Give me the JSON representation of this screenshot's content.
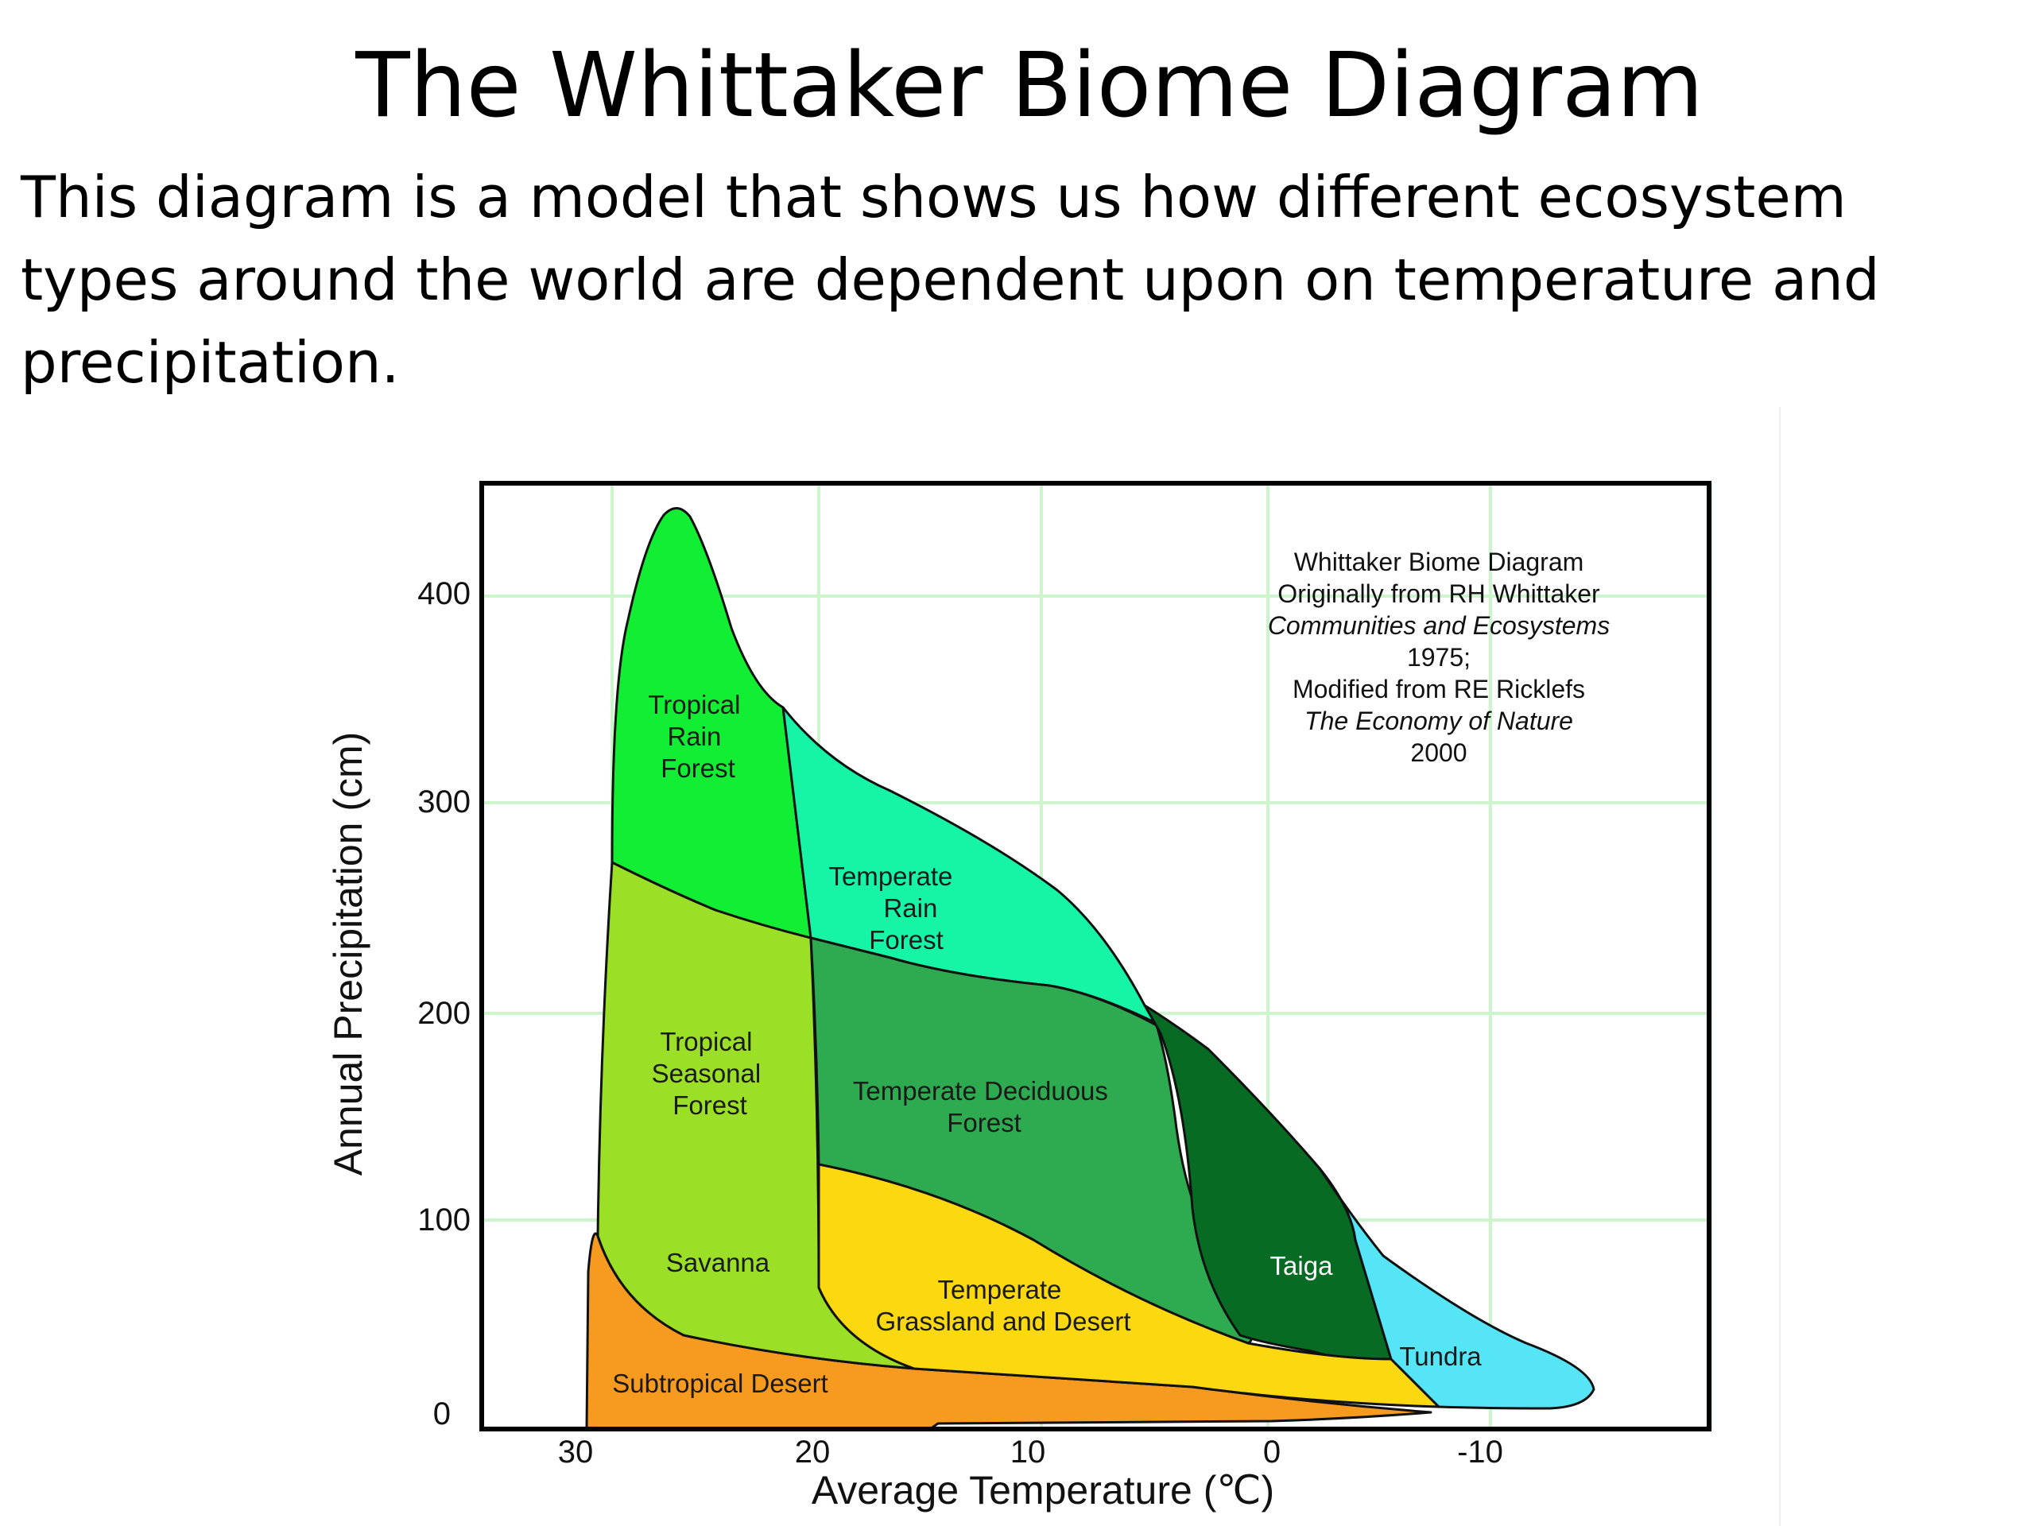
{
  "title": "The Whittaker Biome Diagram",
  "description": "This diagram is a model that shows us how different ecosystem types around the world are dependent upon on temperature and precipitation.",
  "colors": {
    "tropical_rain_forest": "#11ee33",
    "tropical_seasonal_forest": "#9be027",
    "subtropical_desert": "#f79b20",
    "temperate_rain_forest": "#16f5a6",
    "temperate_deciduous_forest": "#2eaa50",
    "temperate_grassland_desert": "#fbd80f",
    "taiga": "#086b24",
    "tundra": "#56e5f6",
    "grid": "#ccf5cc"
  },
  "axes": {
    "x_title": "Average Temperature (℃)",
    "y_title": "Annual Precipitation (cm)",
    "x_ticks": [
      "30",
      "20",
      "10",
      "0",
      "-10"
    ],
    "y_ticks": [
      "400",
      "300",
      "200",
      "100",
      "0"
    ]
  },
  "biomes": [
    {
      "label_lines": [
        "Tropical",
        "Rain",
        "Forest"
      ]
    },
    {
      "label_lines": [
        "Temperate",
        "Rain",
        "Forest"
      ]
    },
    {
      "label_lines": [
        "Tropical",
        "Seasonal",
        "Forest"
      ]
    },
    {
      "label_lines": [
        "Temperate Deciduous",
        "Forest"
      ]
    },
    {
      "label_lines": [
        "Savanna"
      ]
    },
    {
      "label_lines": [
        "Taiga"
      ]
    },
    {
      "label_lines": [
        "Temperate",
        "Grassland and Desert"
      ]
    },
    {
      "label_lines": [
        "Tundra"
      ]
    },
    {
      "label_lines": [
        "Subtropical Desert"
      ]
    }
  ],
  "credit": {
    "lines": [
      {
        "text": "Whittaker Biome Diagram",
        "italic": false
      },
      {
        "text": "Originally from RH Whittaker",
        "italic": false
      },
      {
        "text": "Communities and Ecosystems",
        "italic": true
      },
      {
        "text": "1975;",
        "italic": false
      },
      {
        "text": "Modified from RE Ricklefs",
        "italic": false
      },
      {
        "text": "The Economy of Nature",
        "italic": true
      },
      {
        "text": "2000",
        "italic": false
      }
    ]
  }
}
